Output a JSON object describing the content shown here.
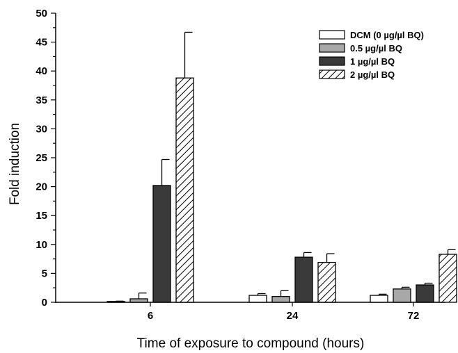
{
  "chart_data": {
    "type": "bar",
    "title": "",
    "xlabel": "Time of exposure to compound (hours)",
    "ylabel": "Fold induction",
    "categories": [
      "6",
      "24",
      "72"
    ],
    "ylim": [
      0,
      50
    ],
    "yticks": [
      0,
      5,
      10,
      15,
      20,
      25,
      30,
      35,
      40,
      45,
      50
    ],
    "grid": false,
    "legend_position": "top-right",
    "series": [
      {
        "name": "DCM (0 µg/µl BQ)",
        "fill": "#ffffff",
        "pattern": "none",
        "values": [
          0.1,
          1.2,
          1.2
        ],
        "errors": [
          0.1,
          0.3,
          0.2
        ]
      },
      {
        "name": "0.5 µg/µl BQ",
        "fill": "#a8a8a8",
        "pattern": "none",
        "values": [
          0.6,
          1.0,
          2.3
        ],
        "errors": [
          1.0,
          1.0,
          0.3
        ]
      },
      {
        "name": "1 µg/µl BQ",
        "fill": "#3a3a3a",
        "pattern": "none",
        "values": [
          20.2,
          7.8,
          3.0
        ],
        "errors": [
          4.5,
          0.8,
          0.3
        ]
      },
      {
        "name": "2 µg/µl BQ",
        "fill": "#ffffff",
        "pattern": "diagonal-hatch",
        "values": [
          38.8,
          6.9,
          8.3
        ],
        "errors": [
          7.9,
          1.5,
          0.8
        ]
      }
    ]
  }
}
